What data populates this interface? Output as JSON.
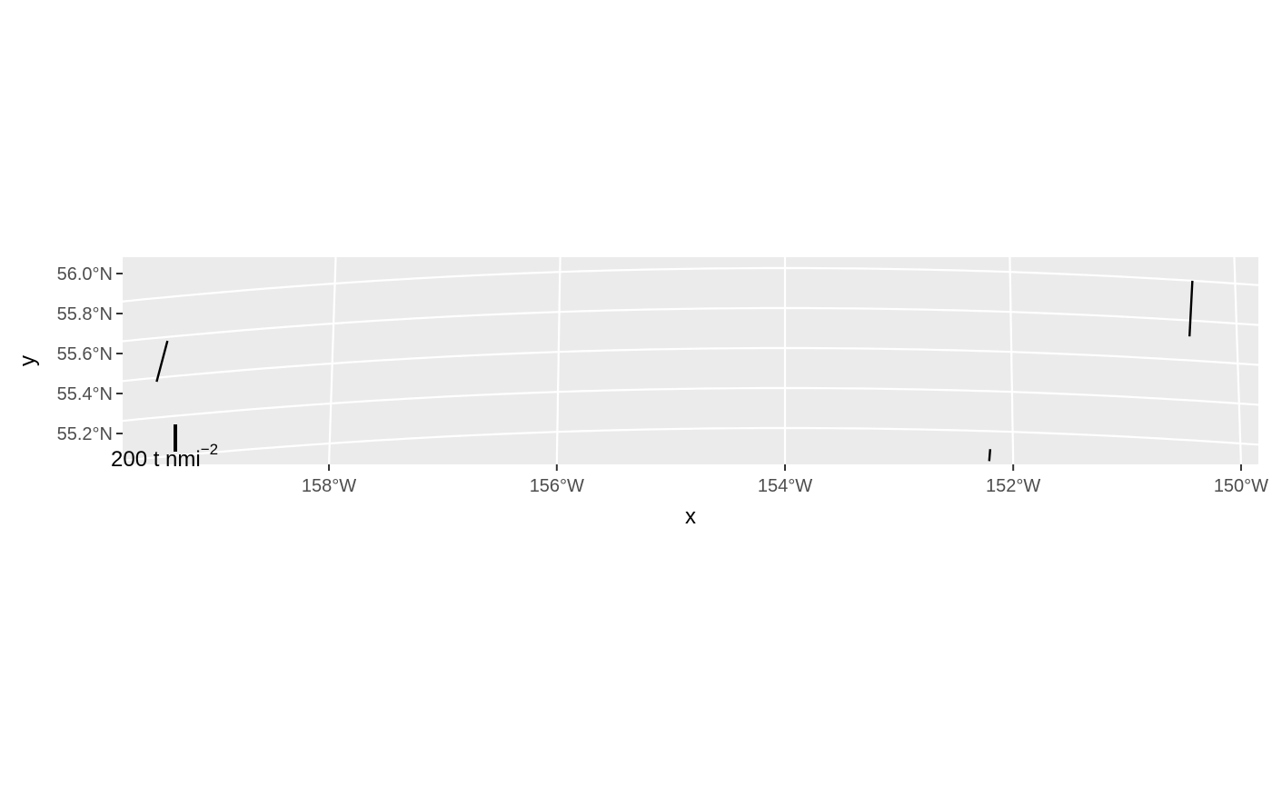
{
  "chart_data": {
    "type": "scatter",
    "title": "",
    "xlabel": "x",
    "ylabel": "y",
    "xlim": [
      -160,
      -149.9
    ],
    "ylim": [
      55.05,
      56.05
    ],
    "grid": true,
    "x_ticks": [
      {
        "value": -158,
        "label": "158°W"
      },
      {
        "value": -156,
        "label": "156°W"
      },
      {
        "value": -154,
        "label": "154°W"
      },
      {
        "value": -152,
        "label": "152°W"
      },
      {
        "value": -150,
        "label": "150°W"
      }
    ],
    "y_ticks": [
      {
        "value": 55.2,
        "label": "55.2°N"
      },
      {
        "value": 55.4,
        "label": "55.4°N"
      },
      {
        "value": 55.6,
        "label": "55.6°N"
      },
      {
        "value": 55.8,
        "label": "55.8°N"
      },
      {
        "value": 56.0,
        "label": "56.0°N"
      }
    ],
    "segments": [
      {
        "lon": -159.55,
        "lat": 55.58,
        "lon_end": -159.47,
        "lat_end": 55.78
      },
      {
        "lon": -150.42,
        "lat": 55.72,
        "lon_end": -150.38,
        "lat_end": 56.0
      },
      {
        "lon": -152.21,
        "lat": 55.05,
        "lon_end": -152.2,
        "lat_end": 55.11
      }
    ],
    "legend": {
      "label": "200 t nmi",
      "exponent": "−2",
      "placement": "bottom-left"
    }
  }
}
